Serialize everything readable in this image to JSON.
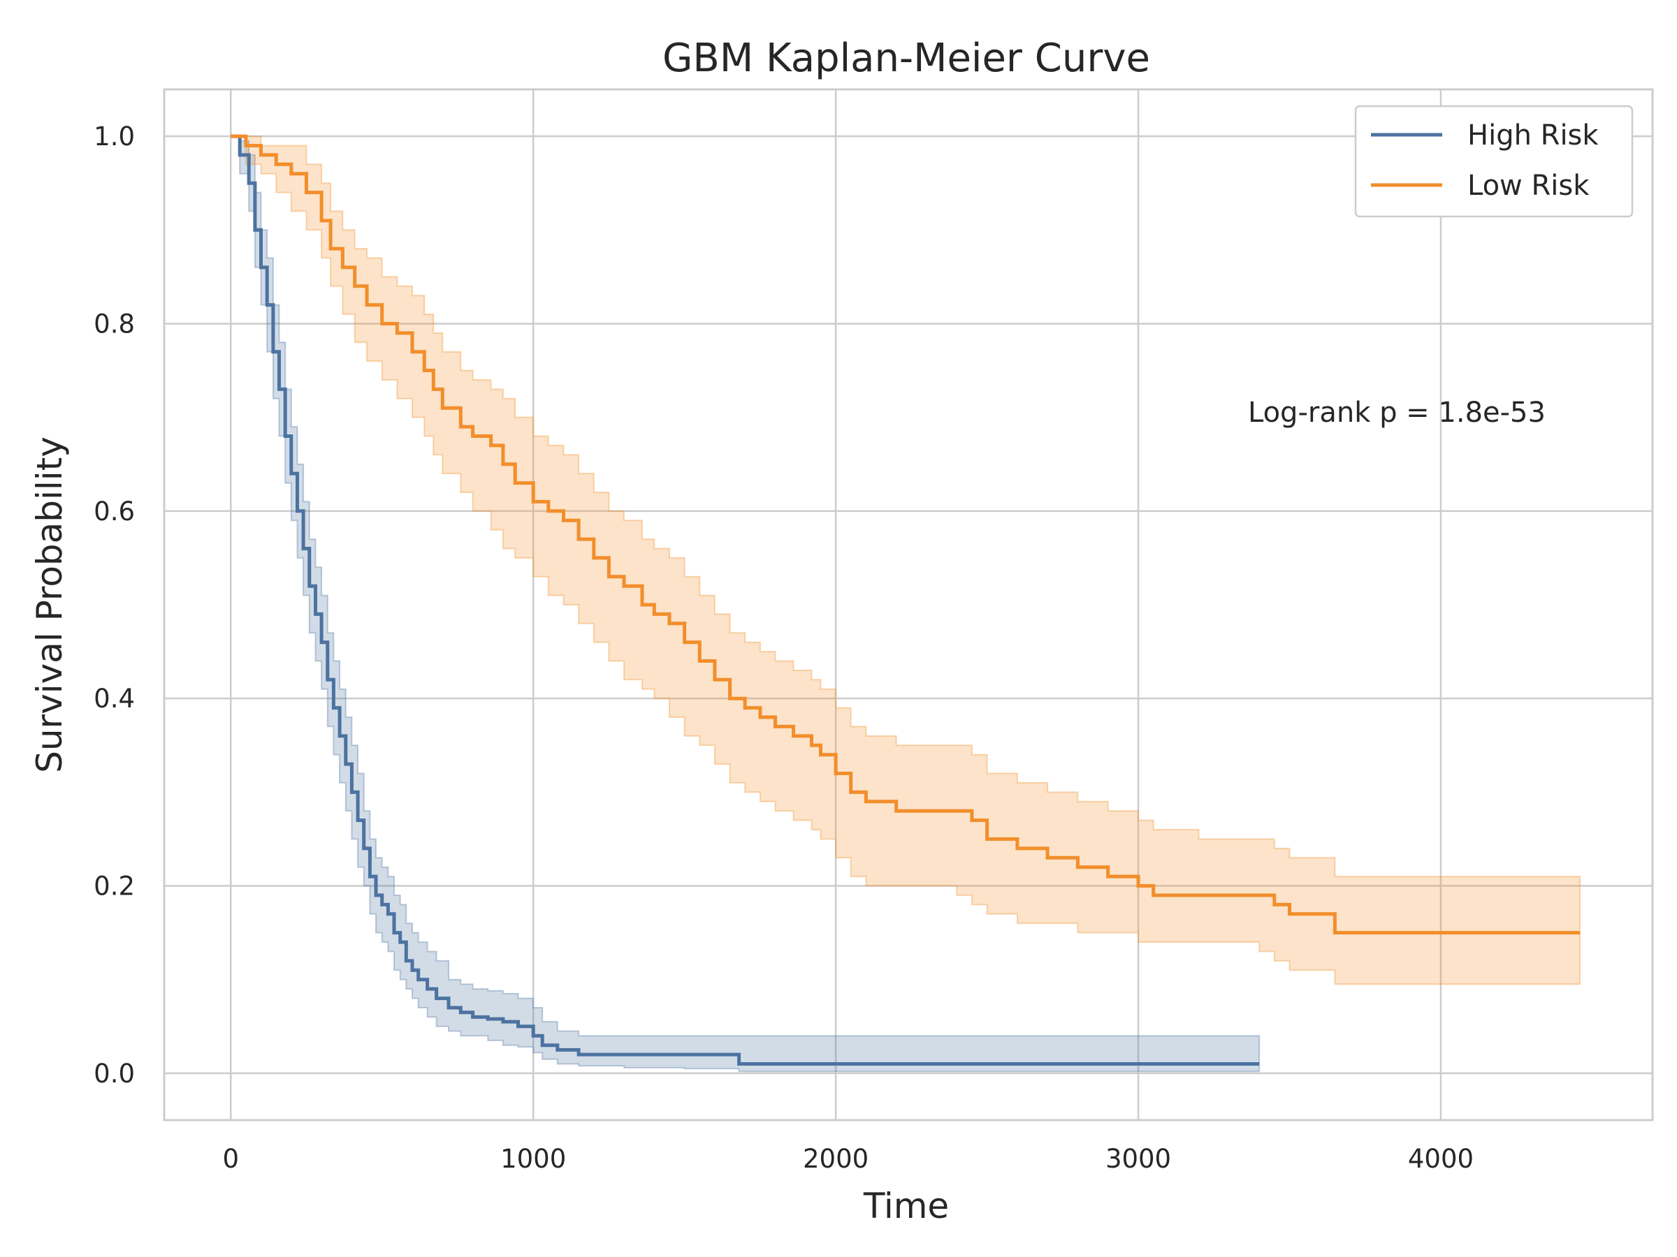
{
  "chart_data": {
    "type": "line",
    "title": "GBM Kaplan-Meier Curve",
    "xlabel": "Time",
    "ylabel": "Survival Probability",
    "xlim": [
      -220,
      4700
    ],
    "ylim": [
      -0.05,
      1.05
    ],
    "xticks": [
      0,
      1000,
      2000,
      3000,
      4000
    ],
    "xtick_labels": [
      "0",
      "1000",
      "2000",
      "3000",
      "4000"
    ],
    "yticks": [
      0.0,
      0.2,
      0.4,
      0.6,
      0.8,
      1.0
    ],
    "ytick_labels": [
      "0.0",
      "0.2",
      "0.4",
      "0.6",
      "0.8",
      "1.0"
    ],
    "grid": true,
    "legend_position": "top-right",
    "annotation": "Log-rank p = 1.8e-53",
    "series": [
      {
        "name": "High Risk",
        "color": "#4c72a0",
        "step": true,
        "x": [
          0,
          30,
          60,
          80,
          100,
          120,
          140,
          160,
          180,
          200,
          220,
          240,
          260,
          280,
          300,
          320,
          340,
          360,
          380,
          400,
          420,
          440,
          460,
          480,
          500,
          520,
          540,
          560,
          580,
          600,
          620,
          650,
          680,
          720,
          760,
          800,
          850,
          900,
          950,
          1000,
          1030,
          1080,
          1150,
          1300,
          1500,
          1680,
          2000,
          2500,
          3000,
          3400
        ],
        "y": [
          1.0,
          0.98,
          0.95,
          0.9,
          0.86,
          0.82,
          0.77,
          0.73,
          0.68,
          0.64,
          0.6,
          0.56,
          0.52,
          0.49,
          0.46,
          0.42,
          0.39,
          0.36,
          0.33,
          0.3,
          0.27,
          0.24,
          0.21,
          0.19,
          0.18,
          0.17,
          0.15,
          0.14,
          0.12,
          0.11,
          0.1,
          0.09,
          0.08,
          0.07,
          0.065,
          0.06,
          0.058,
          0.055,
          0.05,
          0.04,
          0.03,
          0.025,
          0.02,
          0.02,
          0.02,
          0.01,
          0.01,
          0.01,
          0.01,
          0.01
        ],
        "ci_lower": [
          1.0,
          0.96,
          0.92,
          0.86,
          0.82,
          0.77,
          0.72,
          0.68,
          0.63,
          0.59,
          0.55,
          0.51,
          0.47,
          0.44,
          0.41,
          0.37,
          0.34,
          0.31,
          0.28,
          0.25,
          0.22,
          0.2,
          0.17,
          0.15,
          0.14,
          0.13,
          0.11,
          0.1,
          0.09,
          0.08,
          0.07,
          0.06,
          0.05,
          0.045,
          0.04,
          0.04,
          0.035,
          0.03,
          0.028,
          0.022,
          0.015,
          0.01,
          0.008,
          0.006,
          0.005,
          0.002,
          0.002,
          0.002,
          0.002,
          0.002
        ],
        "ci_upper": [
          1.0,
          0.995,
          0.98,
          0.94,
          0.9,
          0.87,
          0.82,
          0.78,
          0.73,
          0.69,
          0.65,
          0.61,
          0.57,
          0.54,
          0.51,
          0.47,
          0.44,
          0.41,
          0.38,
          0.35,
          0.32,
          0.28,
          0.25,
          0.23,
          0.22,
          0.21,
          0.19,
          0.18,
          0.16,
          0.15,
          0.14,
          0.13,
          0.12,
          0.1,
          0.095,
          0.09,
          0.088,
          0.085,
          0.08,
          0.07,
          0.055,
          0.045,
          0.04,
          0.04,
          0.04,
          0.04,
          0.04,
          0.04,
          0.04,
          0.04
        ]
      },
      {
        "name": "Low Risk",
        "color": "#f28e2b",
        "step": true,
        "x": [
          0,
          50,
          100,
          150,
          200,
          250,
          300,
          330,
          370,
          410,
          450,
          500,
          550,
          600,
          640,
          670,
          700,
          760,
          800,
          860,
          900,
          940,
          1000,
          1050,
          1100,
          1150,
          1200,
          1250,
          1300,
          1360,
          1400,
          1450,
          1500,
          1550,
          1600,
          1650,
          1700,
          1750,
          1800,
          1860,
          1920,
          1950,
          2000,
          2050,
          2100,
          2200,
          2400,
          2450,
          2500,
          2600,
          2700,
          2800,
          2900,
          3000,
          3050,
          3200,
          3400,
          3450,
          3500,
          3600,
          3650,
          3800,
          4000,
          4460
        ],
        "y": [
          1.0,
          0.99,
          0.98,
          0.97,
          0.96,
          0.94,
          0.91,
          0.88,
          0.86,
          0.84,
          0.82,
          0.8,
          0.79,
          0.77,
          0.75,
          0.73,
          0.71,
          0.69,
          0.68,
          0.67,
          0.65,
          0.63,
          0.61,
          0.6,
          0.59,
          0.57,
          0.55,
          0.53,
          0.52,
          0.5,
          0.49,
          0.48,
          0.46,
          0.44,
          0.42,
          0.4,
          0.39,
          0.38,
          0.37,
          0.36,
          0.35,
          0.34,
          0.32,
          0.3,
          0.29,
          0.28,
          0.28,
          0.27,
          0.25,
          0.24,
          0.23,
          0.22,
          0.21,
          0.2,
          0.19,
          0.19,
          0.19,
          0.18,
          0.17,
          0.17,
          0.15,
          0.15,
          0.15,
          0.15
        ],
        "ci_lower": [
          1.0,
          0.97,
          0.96,
          0.94,
          0.92,
          0.9,
          0.87,
          0.84,
          0.81,
          0.78,
          0.76,
          0.74,
          0.72,
          0.7,
          0.68,
          0.66,
          0.64,
          0.62,
          0.6,
          0.58,
          0.56,
          0.55,
          0.53,
          0.51,
          0.5,
          0.48,
          0.46,
          0.44,
          0.42,
          0.41,
          0.4,
          0.38,
          0.36,
          0.35,
          0.33,
          0.31,
          0.3,
          0.29,
          0.28,
          0.27,
          0.26,
          0.25,
          0.23,
          0.21,
          0.2,
          0.2,
          0.19,
          0.18,
          0.17,
          0.16,
          0.16,
          0.15,
          0.15,
          0.14,
          0.14,
          0.14,
          0.13,
          0.12,
          0.11,
          0.11,
          0.095,
          0.095,
          0.095,
          0.095
        ],
        "ci_upper": [
          1.0,
          1.0,
          0.99,
          0.99,
          0.99,
          0.97,
          0.95,
          0.92,
          0.9,
          0.88,
          0.87,
          0.85,
          0.84,
          0.83,
          0.81,
          0.79,
          0.77,
          0.75,
          0.74,
          0.73,
          0.72,
          0.7,
          0.68,
          0.67,
          0.66,
          0.64,
          0.62,
          0.6,
          0.59,
          0.57,
          0.56,
          0.55,
          0.53,
          0.51,
          0.49,
          0.47,
          0.46,
          0.45,
          0.44,
          0.43,
          0.42,
          0.41,
          0.39,
          0.37,
          0.36,
          0.35,
          0.35,
          0.34,
          0.32,
          0.31,
          0.3,
          0.29,
          0.28,
          0.27,
          0.26,
          0.25,
          0.25,
          0.24,
          0.23,
          0.23,
          0.21,
          0.21,
          0.21,
          0.21
        ]
      }
    ]
  }
}
